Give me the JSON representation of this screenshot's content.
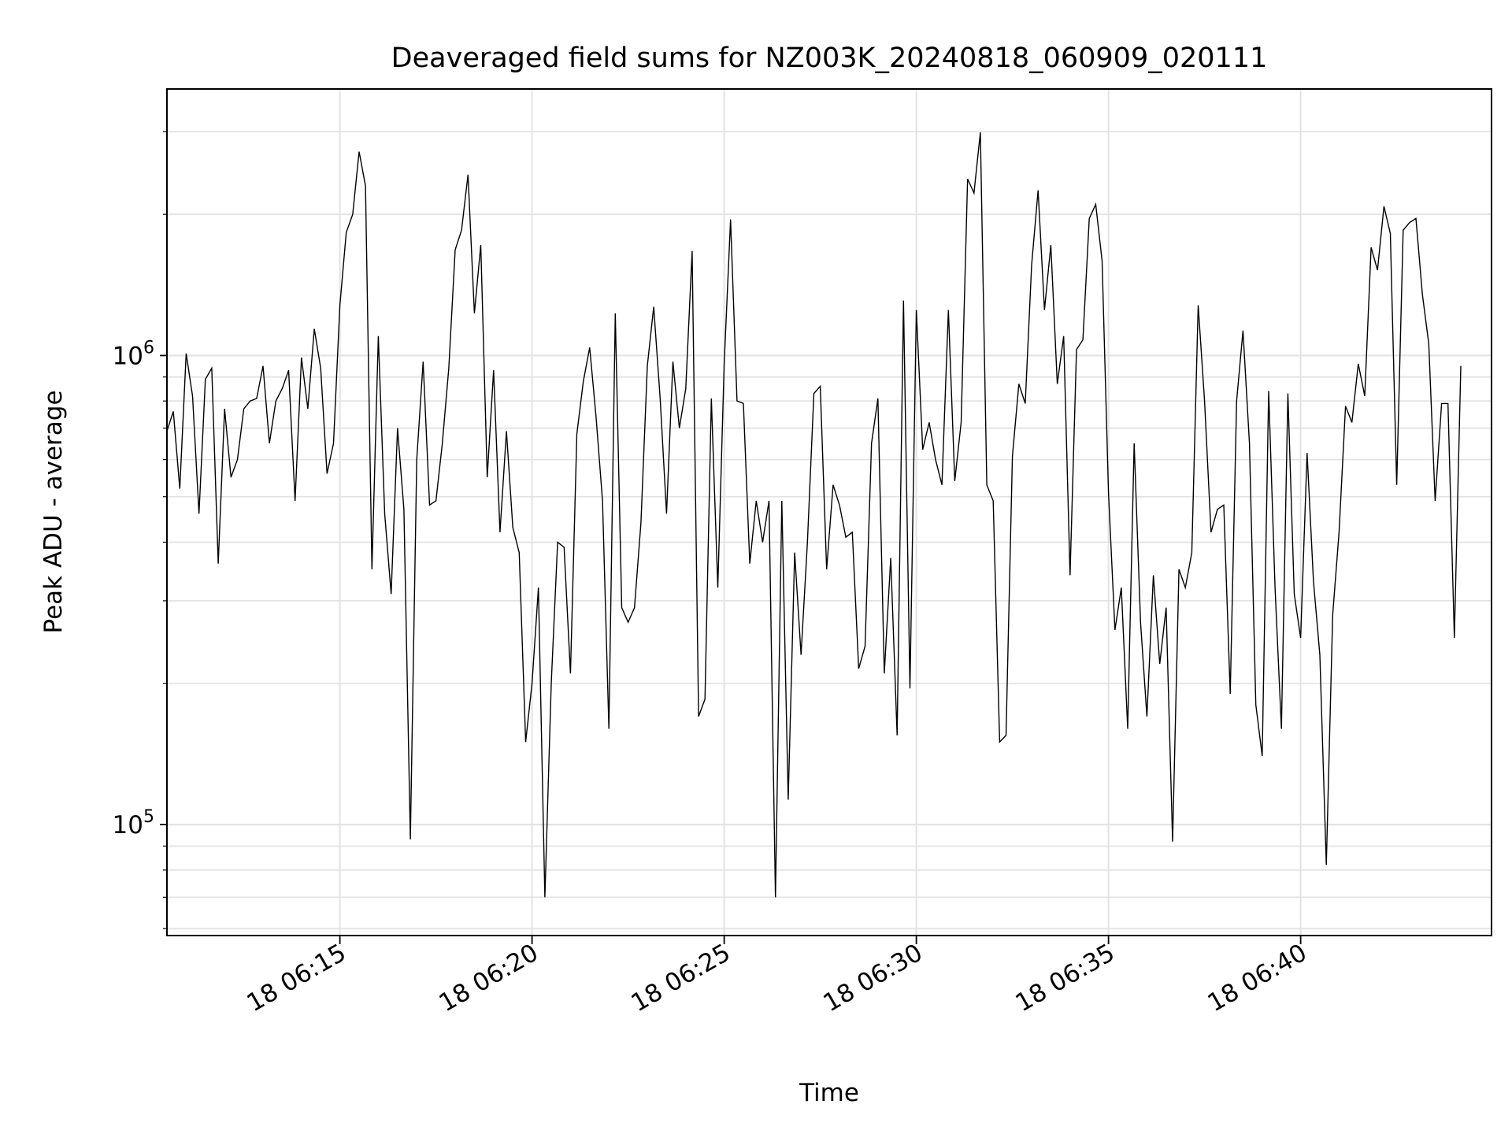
{
  "chart_data": {
    "type": "line",
    "title": "Deaveraged field sums for NZ003K_20240818_060909_020111",
    "xlabel": "Time",
    "ylabel": "Peak ADU - average",
    "yscale": "log",
    "grid": true,
    "legend": "none",
    "line_color": "#000000",
    "x_ticks": [
      "18 06:15",
      "18 06:20",
      "18 06:25",
      "18 06:30",
      "18 06:35",
      "18 06:40"
    ],
    "y_ticks": [
      {
        "value": 100000,
        "base": "10",
        "exp": "5"
      },
      {
        "value": 1000000,
        "base": "10",
        "exp": "6"
      }
    ],
    "xlim": [
      "2024-08-18T06:10:30",
      "2024-08-18T06:44:58"
    ],
    "ylim": [
      58000,
      3700000
    ],
    "x_start": "2024-08-18T06:10:30",
    "x_step_seconds": 10,
    "values": [
      690000,
      760000,
      520000,
      1010000,
      820000,
      460000,
      890000,
      940000,
      360000,
      770000,
      550000,
      600000,
      770000,
      800000,
      810000,
      950000,
      650000,
      800000,
      850000,
      930000,
      490000,
      990000,
      770000,
      1140000,
      940000,
      560000,
      650000,
      1280000,
      1830000,
      2000000,
      2720000,
      2300000,
      350000,
      1100000,
      460000,
      310000,
      700000,
      470000,
      93000,
      600000,
      970000,
      480000,
      490000,
      650000,
      940000,
      1680000,
      1850000,
      2430000,
      1230000,
      1720000,
      550000,
      930000,
      420000,
      690000,
      430000,
      380000,
      150000,
      200000,
      320000,
      70000,
      200000,
      400000,
      390000,
      210000,
      680000,
      880000,
      1040000,
      740000,
      490000,
      160000,
      1230000,
      290000,
      270000,
      290000,
      440000,
      950000,
      1270000,
      810000,
      460000,
      970000,
      700000,
      850000,
      1670000,
      170000,
      185000,
      810000,
      320000,
      960000,
      1950000,
      800000,
      790000,
      360000,
      490000,
      400000,
      490000,
      70000,
      490000,
      113000,
      380000,
      230000,
      400000,
      830000,
      860000,
      350000,
      530000,
      480000,
      410000,
      420000,
      215000,
      240000,
      650000,
      810000,
      210000,
      370000,
      155000,
      1310000,
      195000,
      1250000,
      630000,
      720000,
      600000,
      530000,
      1250000,
      540000,
      720000,
      2380000,
      2220000,
      2990000,
      530000,
      490000,
      150000,
      155000,
      610000,
      870000,
      790000,
      1560000,
      2250000,
      1250000,
      1720000,
      870000,
      1100000,
      340000,
      1030000,
      1080000,
      1960000,
      2100000,
      1590000,
      510000,
      260000,
      320000,
      160000,
      650000,
      270000,
      170000,
      340000,
      220000,
      290000,
      92000,
      350000,
      320000,
      380000,
      1280000,
      800000,
      420000,
      470000,
      480000,
      190000,
      800000,
      1130000,
      650000,
      180000,
      140000,
      840000,
      320000,
      160000,
      830000,
      310000,
      250000,
      620000,
      330000,
      230000,
      82000,
      280000,
      420000,
      780000,
      720000,
      960000,
      820000,
      1700000,
      1520000,
      2080000,
      1820000,
      530000,
      1850000,
      1920000,
      1960000,
      1350000,
      1060000,
      490000,
      790000,
      790000,
      250000,
      950000
    ]
  }
}
